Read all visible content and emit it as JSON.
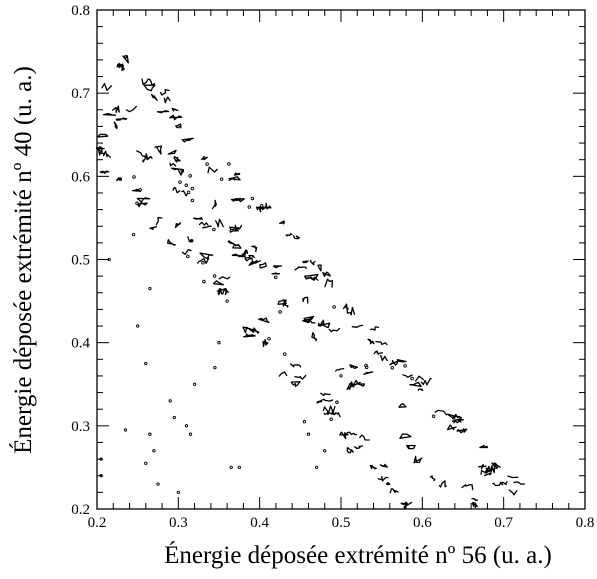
{
  "chart_data": {
    "type": "contour",
    "xlabel": "Énergie déposée extrémité nº 56 (u. a.)",
    "ylabel": "Énergie déposée extrémité nº 40 (u. a.)",
    "xlim": [
      0.2,
      0.8
    ],
    "ylim": [
      0.2,
      0.8
    ],
    "x_ticks": [
      "0.2",
      "0.3",
      "0.4",
      "0.5",
      "0.6",
      "0.7",
      "0.8"
    ],
    "y_ticks": [
      "0.2",
      "0.3",
      "0.4",
      "0.5",
      "0.6",
      "0.7",
      "0.8"
    ],
    "bands": [
      {
        "x": [
          0.2,
          0.585
        ],
        "y0": 0.635,
        "slope": -1.1,
        "width": 0.045
      },
      {
        "x": [
          0.21,
          0.67
        ],
        "y0": 0.705,
        "slope": -1.08,
        "width": 0.05
      },
      {
        "x": [
          0.22,
          0.72
        ],
        "y0": 0.775,
        "slope": -1.08,
        "width": 0.035
      }
    ],
    "scatter": [
      [
        0.245,
        0.53
      ],
      [
        0.215,
        0.5
      ],
      [
        0.235,
        0.295
      ],
      [
        0.26,
        0.375
      ],
      [
        0.265,
        0.29
      ],
      [
        0.27,
        0.27
      ],
      [
        0.29,
        0.33
      ],
      [
        0.295,
        0.31
      ],
      [
        0.31,
        0.3
      ],
      [
        0.315,
        0.29
      ],
      [
        0.345,
        0.37
      ],
      [
        0.3,
        0.22
      ],
      [
        0.275,
        0.23
      ],
      [
        0.365,
        0.25
      ],
      [
        0.375,
        0.25
      ],
      [
        0.35,
        0.4
      ],
      [
        0.205,
        0.26
      ],
      [
        0.205,
        0.24
      ],
      [
        0.26,
        0.255
      ],
      [
        0.265,
        0.465
      ],
      [
        0.25,
        0.42
      ],
      [
        0.32,
        0.35
      ],
      [
        0.36,
        0.45
      ],
      [
        0.47,
        0.25
      ],
      [
        0.46,
        0.29
      ],
      [
        0.48,
        0.27
      ],
      [
        0.455,
        0.305
      ],
      [
        0.5,
        0.36
      ]
    ]
  }
}
